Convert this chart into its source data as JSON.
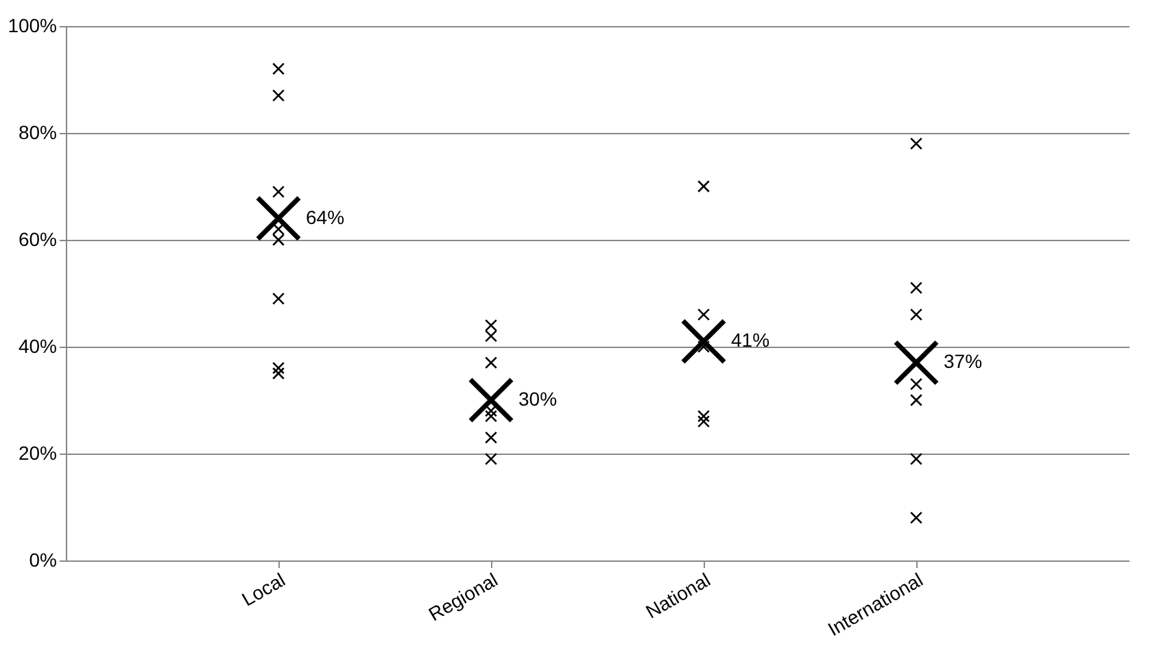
{
  "chart_data": {
    "type": "scatter",
    "categories": [
      "Local",
      "Regional",
      "National",
      "International"
    ],
    "series": [
      {
        "color": "#000000",
        "x": [
          "Local",
          "Local",
          "Local",
          "Local",
          "Local",
          "Local",
          "Local",
          "Local",
          "Regional",
          "Regional",
          "Regional",
          "Regional",
          "Regional",
          "Regional",
          "Regional",
          "National",
          "National",
          "National",
          "National",
          "National",
          "International",
          "International",
          "International",
          "International",
          "International",
          "International",
          "International"
        ],
        "values": [
          92,
          87,
          69,
          62,
          60,
          49,
          36,
          35,
          44,
          42,
          37,
          28,
          27,
          23,
          19,
          70,
          46,
          40,
          27,
          26,
          78,
          51,
          46,
          33,
          30,
          19,
          8
        ]
      },
      {
        "color": "#000000",
        "x": [
          "Local",
          "Regional",
          "National",
          "International"
        ],
        "values": [
          64,
          30,
          41,
          37
        ],
        "value_labels": [
          "64%",
          "30%",
          "41%",
          "37%"
        ]
      }
    ],
    "ylim": [
      0,
      100
    ],
    "yticks": [
      {
        "value": 0,
        "label": "0%"
      },
      {
        "value": 20,
        "label": "20%"
      },
      {
        "value": 40,
        "label": "40%"
      },
      {
        "value": 60,
        "label": "60%"
      },
      {
        "value": 80,
        "label": "80%"
      },
      {
        "value": 100,
        "label": "100%"
      }
    ],
    "grid": "y",
    "marker": "cross"
  }
}
